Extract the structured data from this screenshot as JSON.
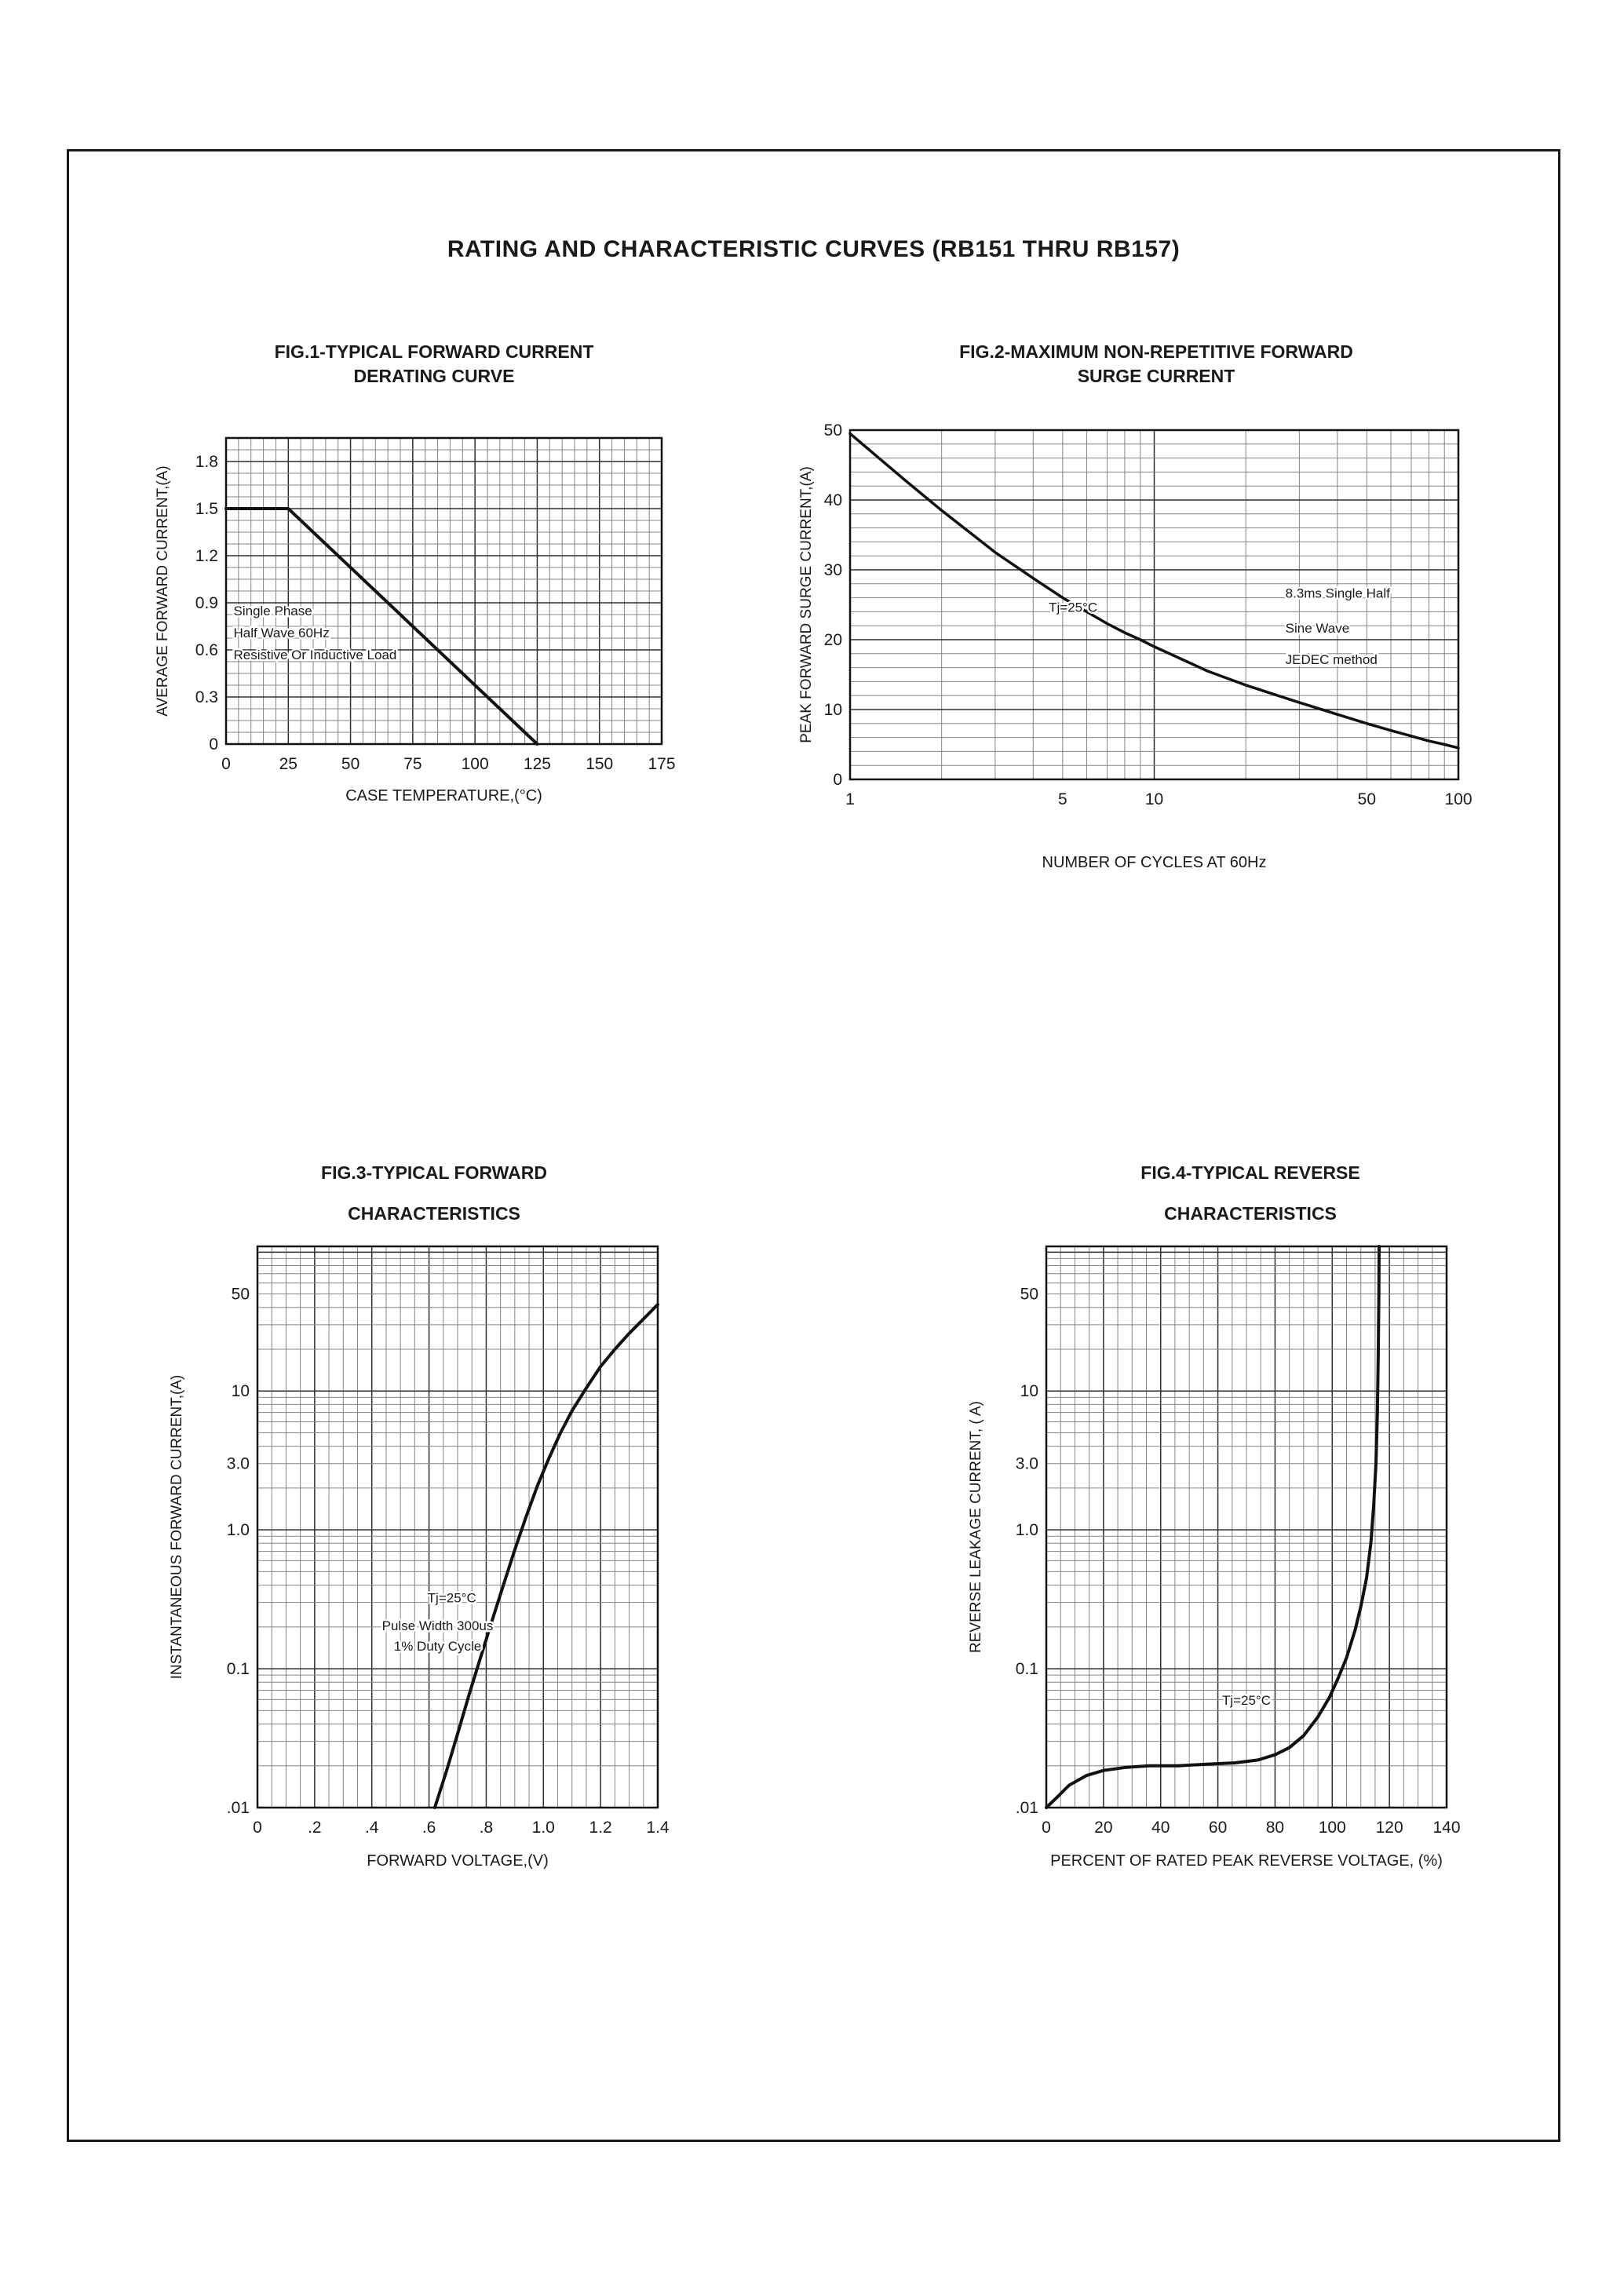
{
  "page": {
    "title": "RATING AND CHARACTERISTIC CURVES (RB151 THRU RB157)"
  },
  "chart_data": [
    {
      "id": "fig1",
      "type": "line",
      "title_lines": [
        "FIG.1-TYPICAL FORWARD CURRENT",
        "DERATING CURVE"
      ],
      "xlabel": "CASE TEMPERATURE,(°C)",
      "ylabel": "AVERAGE FORWARD CURRENT,(A)",
      "x_axis": {
        "scale": "linear",
        "min": 0,
        "max": 175,
        "minor_step": 5,
        "ticks": [
          {
            "v": 0,
            "label": "0"
          },
          {
            "v": 25,
            "label": "25"
          },
          {
            "v": 50,
            "label": "50"
          },
          {
            "v": 75,
            "label": "75"
          },
          {
            "v": 100,
            "label": "100"
          },
          {
            "v": 125,
            "label": "125"
          },
          {
            "v": 150,
            "label": "150"
          },
          {
            "v": 175,
            "label": "175"
          }
        ]
      },
      "y_axis": {
        "scale": "linear",
        "min": 0,
        "max": 1.95,
        "minor_step": 0.075,
        "ticks": [
          {
            "v": 0,
            "label": "0"
          },
          {
            "v": 0.3,
            "label": "0.3"
          },
          {
            "v": 0.6,
            "label": "0.6"
          },
          {
            "v": 0.9,
            "label": "0.9"
          },
          {
            "v": 1.2,
            "label": "1.2"
          },
          {
            "v": 1.5,
            "label": "1.5"
          },
          {
            "v": 1.8,
            "label": "1.8"
          }
        ]
      },
      "series": [
        {
          "name": "forward-current-derating",
          "points": [
            [
              0,
              1.5
            ],
            [
              25,
              1.5
            ],
            [
              125,
              0
            ]
          ]
        }
      ],
      "annotations": [
        {
          "text": "Single Phase",
          "x": 3,
          "y": 0.82,
          "anchor": "start"
        },
        {
          "text": "Half Wave 60Hz",
          "x": 3,
          "y": 0.68,
          "anchor": "start"
        },
        {
          "text": "Resistive Or Inductive Load",
          "x": 3,
          "y": 0.54,
          "anchor": "start"
        }
      ]
    },
    {
      "id": "fig2",
      "type": "line",
      "title_lines": [
        "FIG.2-MAXIMUM NON-REPETITIVE FORWARD",
        "SURGE CURRENT"
      ],
      "xlabel": "NUMBER OF CYCLES AT 60Hz",
      "ylabel": "PEAK FORWARD SURGE CURRENT,(A)",
      "x_axis": {
        "scale": "log",
        "min": 1,
        "max": 100,
        "ticks": [
          {
            "v": 1,
            "label": "1"
          },
          {
            "v": 5,
            "label": "5"
          },
          {
            "v": 10,
            "label": "10"
          },
          {
            "v": 50,
            "label": "50"
          },
          {
            "v": 100,
            "label": "100"
          }
        ]
      },
      "y_axis": {
        "scale": "linear",
        "min": 0,
        "max": 50,
        "minor_step": 2,
        "ticks": [
          {
            "v": 0,
            "label": "0"
          },
          {
            "v": 10,
            "label": "10"
          },
          {
            "v": 20,
            "label": "20"
          },
          {
            "v": 30,
            "label": "30"
          },
          {
            "v": 40,
            "label": "40"
          },
          {
            "v": 50,
            "label": "50"
          }
        ]
      },
      "series": [
        {
          "name": "surge-current",
          "points": [
            [
              1,
              49.5
            ],
            [
              1.5,
              43
            ],
            [
              2,
              38.5
            ],
            [
              3,
              32.5
            ],
            [
              4,
              28.8
            ],
            [
              5,
              26
            ],
            [
              6,
              24
            ],
            [
              7,
              22.3
            ],
            [
              8,
              21
            ],
            [
              9,
              20
            ],
            [
              10,
              19
            ],
            [
              15,
              15.5
            ],
            [
              20,
              13.5
            ],
            [
              30,
              11
            ],
            [
              40,
              9.3
            ],
            [
              50,
              8
            ],
            [
              60,
              7
            ],
            [
              70,
              6.2
            ],
            [
              80,
              5.5
            ],
            [
              90,
              5
            ],
            [
              100,
              4.5
            ]
          ]
        }
      ],
      "annotations": [
        {
          "text": "Tj=25°C",
          "x": 4.5,
          "y": 24,
          "anchor": "start"
        },
        {
          "text": "8.3ms Single Half",
          "x": 27,
          "y": 26,
          "anchor": "start"
        },
        {
          "text": "Sine Wave",
          "x": 27,
          "y": 21,
          "anchor": "start"
        },
        {
          "text": "JEDEC method",
          "x": 27,
          "y": 16.5,
          "anchor": "start"
        }
      ]
    },
    {
      "id": "fig3",
      "type": "line",
      "title_lines": [
        "FIG.3-TYPICAL FORWARD",
        "CHARACTERISTICS"
      ],
      "xlabel": "FORWARD VOLTAGE,(V)",
      "ylabel": "INSTANTANEOUS FORWARD CURRENT,(A)",
      "x_axis": {
        "scale": "linear",
        "min": 0,
        "max": 1.4,
        "minor_step": 0.05,
        "ticks": [
          {
            "v": 0,
            "label": "0"
          },
          {
            "v": 0.2,
            "label": ".2"
          },
          {
            "v": 0.4,
            "label": ".4"
          },
          {
            "v": 0.6,
            "label": ".6"
          },
          {
            "v": 0.8,
            "label": ".8"
          },
          {
            "v": 1.0,
            "label": "1.0"
          },
          {
            "v": 1.2,
            "label": "1.2"
          },
          {
            "v": 1.4,
            "label": "1.4"
          }
        ]
      },
      "y_axis": {
        "scale": "log",
        "min": 0.01,
        "max": 110,
        "ticks": [
          {
            "v": 50,
            "label": "50"
          },
          {
            "v": 10,
            "label": "10"
          },
          {
            "v": 3,
            "label": "3.0"
          },
          {
            "v": 1,
            "label": "1.0"
          },
          {
            "v": 0.1,
            "label": "0.1"
          },
          {
            "v": 0.01,
            "label": ".01"
          }
        ]
      },
      "series": [
        {
          "name": "forward-characteristics",
          "points": [
            [
              0.62,
              0.01
            ],
            [
              0.66,
              0.018
            ],
            [
              0.7,
              0.034
            ],
            [
              0.74,
              0.065
            ],
            [
              0.78,
              0.12
            ],
            [
              0.82,
              0.22
            ],
            [
              0.86,
              0.4
            ],
            [
              0.9,
              0.72
            ],
            [
              0.94,
              1.25
            ],
            [
              0.98,
              2.1
            ],
            [
              1.02,
              3.3
            ],
            [
              1.06,
              5.0
            ],
            [
              1.1,
              7.2
            ],
            [
              1.15,
              10.5
            ],
            [
              1.2,
              15
            ],
            [
              1.25,
              20
            ],
            [
              1.3,
              26
            ],
            [
              1.35,
              33
            ],
            [
              1.4,
              42
            ]
          ]
        }
      ],
      "annotations": [
        {
          "text": "Tj=25°C",
          "x": 0.68,
          "y": 0.3,
          "anchor": "middle"
        },
        {
          "text": "Pulse Width 300us",
          "x": 0.63,
          "y": 0.19,
          "anchor": "middle"
        },
        {
          "text": "1% Duty Cycle",
          "x": 0.63,
          "y": 0.135,
          "anchor": "middle"
        }
      ]
    },
    {
      "id": "fig4",
      "type": "line",
      "title_lines": [
        "FIG.4-TYPICAL REVERSE",
        "CHARACTERISTICS"
      ],
      "xlabel": "PERCENT OF RATED PEAK REVERSE VOLTAGE, (%)",
      "ylabel": "REVERSE LEAKAGE CURRENT, ( A)",
      "x_axis": {
        "scale": "linear",
        "min": 0,
        "max": 140,
        "minor_step": 5,
        "ticks": [
          {
            "v": 0,
            "label": "0"
          },
          {
            "v": 20,
            "label": "20"
          },
          {
            "v": 40,
            "label": "40"
          },
          {
            "v": 60,
            "label": "60"
          },
          {
            "v": 80,
            "label": "80"
          },
          {
            "v": 100,
            "label": "100"
          },
          {
            "v": 120,
            "label": "120"
          },
          {
            "v": 140,
            "label": "140"
          }
        ]
      },
      "y_axis": {
        "scale": "log",
        "min": 0.01,
        "max": 110,
        "ticks": [
          {
            "v": 50,
            "label": "50"
          },
          {
            "v": 10,
            "label": "10"
          },
          {
            "v": 3,
            "label": "3.0"
          },
          {
            "v": 1,
            "label": "1.0"
          },
          {
            "v": 0.1,
            "label": "0.1"
          },
          {
            "v": 0.01,
            "label": ".01"
          }
        ]
      },
      "series": [
        {
          "name": "reverse-leakage",
          "points": [
            [
              0,
              0.01
            ],
            [
              4,
              0.012
            ],
            [
              8,
              0.0145
            ],
            [
              14,
              0.017
            ],
            [
              20,
              0.0185
            ],
            [
              28,
              0.0195
            ],
            [
              36,
              0.02
            ],
            [
              46,
              0.02
            ],
            [
              56,
              0.0205
            ],
            [
              66,
              0.021
            ],
            [
              74,
              0.022
            ],
            [
              80,
              0.024
            ],
            [
              85,
              0.027
            ],
            [
              90,
              0.033
            ],
            [
              95,
              0.045
            ],
            [
              99,
              0.062
            ],
            [
              102,
              0.085
            ],
            [
              105,
              0.12
            ],
            [
              108,
              0.19
            ],
            [
              110,
              0.28
            ],
            [
              112,
              0.45
            ],
            [
              113.5,
              0.8
            ],
            [
              114.5,
              1.5
            ],
            [
              115.3,
              3
            ],
            [
              115.8,
              7
            ],
            [
              116.1,
              18
            ],
            [
              116.3,
              50
            ],
            [
              116.4,
              110
            ]
          ]
        }
      ],
      "annotations": [
        {
          "text": "Tj=25°C",
          "x": 70,
          "y": 0.055,
          "anchor": "middle"
        }
      ]
    }
  ]
}
